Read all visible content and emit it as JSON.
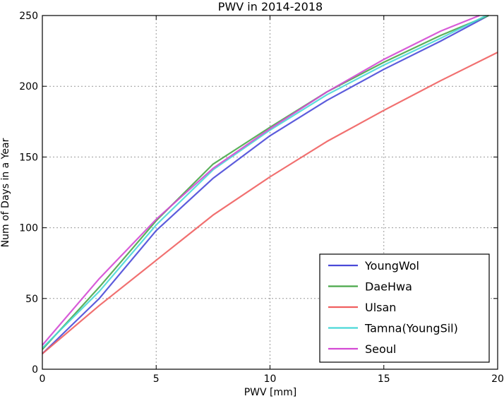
{
  "chart_data": {
    "type": "line",
    "title": "PWV in 2014-2018",
    "xlabel": "PWV [mm]",
    "ylabel": "Num of Days in a Year",
    "xlim": [
      0,
      20
    ],
    "ylim": [
      0,
      250
    ],
    "xticks": [
      0,
      5,
      10,
      15,
      20
    ],
    "yticks": [
      0,
      50,
      100,
      150,
      200,
      250
    ],
    "grid": true,
    "legend_position": "lower-right",
    "series": [
      {
        "name": "YoungWol",
        "color": "#4a4ad8",
        "x": [
          0,
          2.5,
          5,
          7.5,
          10,
          12.5,
          15,
          17.5,
          19.6
        ],
        "y": [
          11,
          50,
          98,
          135,
          165,
          190,
          212,
          232,
          250
        ]
      },
      {
        "name": "DaeHwa",
        "color": "#4aa84a",
        "x": [
          0,
          2.5,
          5,
          7.5,
          10,
          12.5,
          15,
          17.5,
          19.6
        ],
        "y": [
          14,
          58,
          105,
          145,
          171,
          196,
          217,
          236,
          250
        ]
      },
      {
        "name": "Ulsan",
        "color": "#f06060",
        "x": [
          0,
          2.5,
          5,
          7.5,
          10,
          12.5,
          15,
          17.5,
          20
        ],
        "y": [
          11,
          45,
          77,
          109,
          136,
          161,
          183,
          204,
          224
        ]
      },
      {
        "name": "Tamna(YoungSil)",
        "color": "#4ad8d8",
        "x": [
          0,
          2.5,
          5,
          7.5,
          10,
          12.5,
          15,
          17.5,
          19.5
        ],
        "y": [
          15,
          55,
          102,
          141,
          169,
          194,
          215,
          234,
          250
        ]
      },
      {
        "name": "Seoul",
        "color": "#d44ad4",
        "x": [
          0,
          2.5,
          5,
          7.5,
          10,
          12.5,
          15,
          17.5,
          19.2
        ],
        "y": [
          17,
          64,
          106,
          142,
          170,
          196,
          219,
          239,
          250
        ]
      }
    ]
  }
}
